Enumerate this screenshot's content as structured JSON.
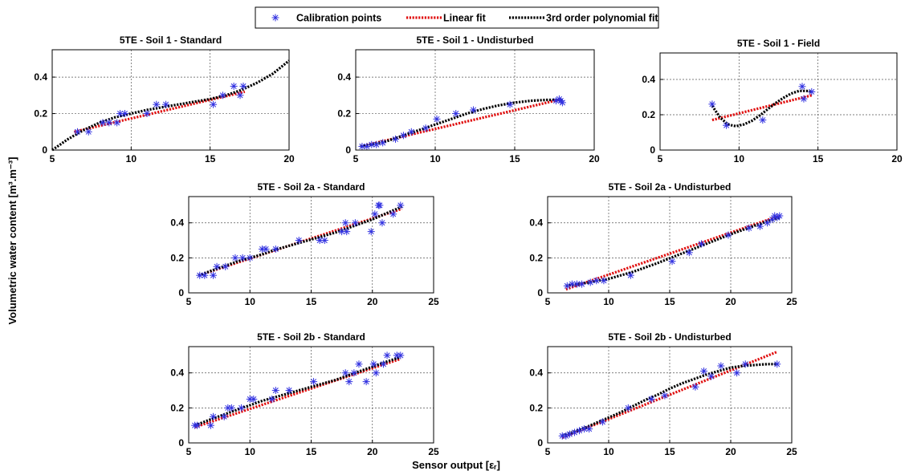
{
  "figure": {
    "ylabel": "Volumetric water content [m³.m⁻³]",
    "xlabel": "Sensor output [εᵣ]",
    "legend": [
      {
        "label": "Calibration points",
        "marker": "asterisk",
        "color": "#3030e0"
      },
      {
        "label": "Linear fit",
        "style": "dotted",
        "color": "#e01010"
      },
      {
        "label": "3rd order polynomial fit",
        "style": "dotted",
        "color": "#000000"
      }
    ],
    "legend_position": "top-center"
  },
  "chart_data": [
    {
      "type": "scatter",
      "title": "5TE - Soil 1 - Standard",
      "xlim": [
        5,
        20
      ],
      "ylim": [
        0,
        0.55
      ],
      "xticks": [
        "5",
        "10",
        "15",
        "20"
      ],
      "yticks": [
        "0",
        "0.2",
        "0.4"
      ],
      "grid": true,
      "series": [
        {
          "name": "Calibration points",
          "kind": "points",
          "x": [
            6.6,
            7.3,
            8.2,
            8.6,
            9.1,
            9.3,
            9.6,
            11.0,
            11.6,
            12.2,
            15.2,
            15.8,
            16.5,
            16.9,
            17.1
          ],
          "y": [
            0.1,
            0.1,
            0.15,
            0.15,
            0.15,
            0.2,
            0.2,
            0.2,
            0.25,
            0.25,
            0.25,
            0.3,
            0.35,
            0.3,
            0.35
          ]
        },
        {
          "name": "Linear fit",
          "kind": "line",
          "x": [
            6.4,
            17.2
          ],
          "y": [
            0.1,
            0.32
          ]
        },
        {
          "name": "3rd order polynomial fit",
          "kind": "line",
          "x": [
            5,
            6,
            7,
            8,
            9,
            10,
            11,
            12,
            13,
            14,
            15,
            16,
            17,
            18,
            19,
            20
          ],
          "y": [
            0.0,
            0.06,
            0.11,
            0.15,
            0.18,
            0.2,
            0.22,
            0.235,
            0.25,
            0.265,
            0.28,
            0.3,
            0.33,
            0.37,
            0.42,
            0.49
          ]
        }
      ]
    },
    {
      "type": "scatter",
      "title": "5TE - Soil 1 - Undisturbed",
      "xlim": [
        5,
        20
      ],
      "ylim": [
        0,
        0.55
      ],
      "xticks": [
        "5",
        "10",
        "15",
        "20"
      ],
      "yticks": [
        "0",
        "0.2",
        "0.4"
      ],
      "grid": true,
      "series": [
        {
          "name": "Calibration points",
          "kind": "points",
          "x": [
            5.4,
            5.7,
            6.0,
            6.3,
            6.7,
            7.5,
            8.0,
            8.5,
            9.4,
            10.1,
            11.3,
            12.4,
            14.7,
            17.6,
            17.8,
            17.9,
            18.0
          ],
          "y": [
            0.02,
            0.02,
            0.03,
            0.03,
            0.04,
            0.06,
            0.08,
            0.1,
            0.12,
            0.17,
            0.2,
            0.22,
            0.25,
            0.27,
            0.28,
            0.27,
            0.26
          ]
        },
        {
          "name": "Linear fit",
          "kind": "line",
          "x": [
            5.3,
            18.0
          ],
          "y": [
            0.02,
            0.28
          ]
        },
        {
          "name": "3rd order polynomial fit",
          "kind": "line",
          "x": [
            5.3,
            6,
            7,
            8,
            9,
            10,
            11,
            12,
            13,
            14,
            15,
            16,
            17,
            18
          ],
          "y": [
            0.02,
            0.03,
            0.05,
            0.08,
            0.11,
            0.14,
            0.17,
            0.2,
            0.225,
            0.245,
            0.26,
            0.27,
            0.275,
            0.275
          ]
        }
      ]
    },
    {
      "type": "scatter",
      "title": "5TE - Soil 1 - Field",
      "xlim": [
        5,
        20
      ],
      "ylim": [
        0,
        0.55
      ],
      "xticks": [
        "5",
        "10",
        "15",
        "20"
      ],
      "yticks": [
        "0",
        "0.2",
        "0.4"
      ],
      "grid": true,
      "series": [
        {
          "name": "Calibration points",
          "kind": "points",
          "x": [
            8.3,
            9.2,
            11.5,
            14.0,
            14.1,
            14.6
          ],
          "y": [
            0.26,
            0.14,
            0.17,
            0.36,
            0.29,
            0.33
          ]
        },
        {
          "name": "Linear fit",
          "kind": "line",
          "x": [
            8.3,
            14.6
          ],
          "y": [
            0.17,
            0.31
          ]
        },
        {
          "name": "3rd order polynomial fit",
          "kind": "line",
          "x": [
            8.3,
            8.8,
            9.3,
            9.8,
            10.3,
            10.8,
            11.3,
            11.8,
            12.3,
            12.8,
            13.3,
            13.8,
            14.3,
            14.6
          ],
          "y": [
            0.25,
            0.185,
            0.145,
            0.135,
            0.145,
            0.165,
            0.195,
            0.23,
            0.265,
            0.295,
            0.32,
            0.335,
            0.335,
            0.33
          ]
        }
      ]
    },
    {
      "type": "scatter",
      "title": "5TE - Soil 2a - Standard",
      "xlim": [
        5,
        25
      ],
      "ylim": [
        0,
        0.55
      ],
      "xticks": [
        "5",
        "10",
        "15",
        "20",
        "25"
      ],
      "yticks": [
        "0",
        "0.2",
        "0.4"
      ],
      "grid": true,
      "series": [
        {
          "name": "Calibration points",
          "kind": "points",
          "x": [
            5.9,
            6.3,
            7.0,
            7.3,
            8.0,
            8.8,
            9.4,
            10.0,
            11.0,
            11.3,
            12.1,
            14.0,
            15.7,
            16.1,
            17.5,
            17.8,
            17.9,
            18.6,
            19.9,
            20.2,
            20.5,
            20.6,
            20.8,
            21.7,
            22.3
          ],
          "y": [
            0.1,
            0.1,
            0.1,
            0.15,
            0.15,
            0.2,
            0.2,
            0.2,
            0.25,
            0.25,
            0.25,
            0.3,
            0.3,
            0.3,
            0.35,
            0.4,
            0.35,
            0.4,
            0.35,
            0.45,
            0.5,
            0.5,
            0.4,
            0.45,
            0.5
          ]
        },
        {
          "name": "Linear fit",
          "kind": "line",
          "x": [
            5.8,
            22.4
          ],
          "y": [
            0.1,
            0.48
          ]
        },
        {
          "name": "3rd order polynomial fit",
          "kind": "line",
          "x": [
            5.8,
            7,
            8,
            9,
            10,
            11,
            12,
            13,
            14,
            15,
            16,
            17,
            18,
            19,
            20,
            21,
            22,
            22.4
          ],
          "y": [
            0.1,
            0.13,
            0.155,
            0.18,
            0.2,
            0.22,
            0.245,
            0.265,
            0.285,
            0.305,
            0.325,
            0.345,
            0.37,
            0.395,
            0.42,
            0.45,
            0.48,
            0.495
          ]
        }
      ]
    },
    {
      "type": "scatter",
      "title": "5TE - Soil 2a - Undisturbed",
      "xlim": [
        5,
        25
      ],
      "ylim": [
        0,
        0.55
      ],
      "xticks": [
        "5",
        "10",
        "15",
        "20",
        "25"
      ],
      "yticks": [
        "0",
        "0.2",
        "0.4"
      ],
      "grid": true,
      "series": [
        {
          "name": "Calibration points",
          "kind": "points",
          "x": [
            6.6,
            7.0,
            7.4,
            7.8,
            8.5,
            9.0,
            9.6,
            11.8,
            15.2,
            16.6,
            17.6,
            19.8,
            21.5,
            22.4,
            23.0,
            23.4,
            23.6,
            23.8,
            24.0
          ],
          "y": [
            0.04,
            0.05,
            0.05,
            0.05,
            0.06,
            0.07,
            0.07,
            0.1,
            0.18,
            0.23,
            0.28,
            0.33,
            0.37,
            0.38,
            0.4,
            0.42,
            0.44,
            0.43,
            0.44
          ]
        },
        {
          "name": "Linear fit",
          "kind": "line",
          "x": [
            6.5,
            24.0
          ],
          "y": [
            0.02,
            0.44
          ]
        },
        {
          "name": "3rd order polynomial fit",
          "kind": "line",
          "x": [
            6.5,
            8,
            10,
            12,
            14,
            16,
            18,
            20,
            22,
            24
          ],
          "y": [
            0.04,
            0.055,
            0.08,
            0.12,
            0.17,
            0.225,
            0.28,
            0.335,
            0.385,
            0.43
          ]
        }
      ]
    },
    {
      "type": "scatter",
      "title": "5TE - Soil 2b - Standard",
      "xlim": [
        5,
        25
      ],
      "ylim": [
        0,
        0.55
      ],
      "xticks": [
        "5",
        "10",
        "15",
        "20",
        "25"
      ],
      "yticks": [
        "0",
        "0.2",
        "0.4"
      ],
      "grid": true,
      "series": [
        {
          "name": "Calibration points",
          "kind": "points",
          "x": [
            5.5,
            5.7,
            6.8,
            7.0,
            7.9,
            8.2,
            8.5,
            9.3,
            10.0,
            10.3,
            11.8,
            12.1,
            13.2,
            15.2,
            17.8,
            18.1,
            18.5,
            18.9,
            19.5,
            20.1,
            20.3,
            20.9,
            21.2,
            22.0,
            22.3
          ],
          "y": [
            0.1,
            0.1,
            0.1,
            0.15,
            0.15,
            0.2,
            0.2,
            0.2,
            0.25,
            0.25,
            0.25,
            0.3,
            0.3,
            0.35,
            0.4,
            0.35,
            0.4,
            0.45,
            0.35,
            0.45,
            0.4,
            0.45,
            0.5,
            0.5,
            0.5
          ]
        },
        {
          "name": "Linear fit",
          "kind": "line",
          "x": [
            5.5,
            22.3
          ],
          "y": [
            0.09,
            0.48
          ]
        },
        {
          "name": "3rd order polynomial fit",
          "kind": "line",
          "x": [
            5.5,
            7,
            9,
            11,
            13,
            15,
            17,
            19,
            21,
            22.3
          ],
          "y": [
            0.1,
            0.14,
            0.19,
            0.24,
            0.28,
            0.32,
            0.36,
            0.41,
            0.46,
            0.49
          ]
        }
      ]
    },
    {
      "type": "scatter",
      "title": "5TE - Soil 2b - Undisturbed",
      "xlim": [
        5,
        25
      ],
      "ylim": [
        0,
        0.55
      ],
      "xticks": [
        "5",
        "10",
        "15",
        "20",
        "25"
      ],
      "yticks": [
        "0",
        "0.2",
        "0.4"
      ],
      "grid": true,
      "series": [
        {
          "name": "Calibration points",
          "kind": "points",
          "x": [
            6.2,
            6.5,
            6.8,
            7.2,
            7.6,
            8.0,
            8.4,
            9.5,
            11.6,
            13.5,
            14.6,
            17.1,
            17.8,
            18.4,
            19.2,
            20.5,
            21.2,
            23.8
          ],
          "y": [
            0.04,
            0.04,
            0.05,
            0.06,
            0.07,
            0.08,
            0.08,
            0.12,
            0.2,
            0.25,
            0.27,
            0.32,
            0.41,
            0.38,
            0.44,
            0.4,
            0.45,
            0.45
          ]
        },
        {
          "name": "Linear fit",
          "kind": "line",
          "x": [
            6.2,
            23.8
          ],
          "y": [
            0.03,
            0.52
          ]
        },
        {
          "name": "3rd order polynomial fit",
          "kind": "line",
          "x": [
            6.2,
            7,
            8,
            9,
            10,
            11,
            12,
            13,
            14,
            15,
            16,
            17,
            18,
            19,
            20,
            21,
            22,
            23,
            23.8
          ],
          "y": [
            0.04,
            0.06,
            0.085,
            0.115,
            0.145,
            0.175,
            0.21,
            0.245,
            0.275,
            0.31,
            0.34,
            0.365,
            0.39,
            0.41,
            0.43,
            0.44,
            0.445,
            0.45,
            0.45
          ]
        }
      ]
    }
  ]
}
